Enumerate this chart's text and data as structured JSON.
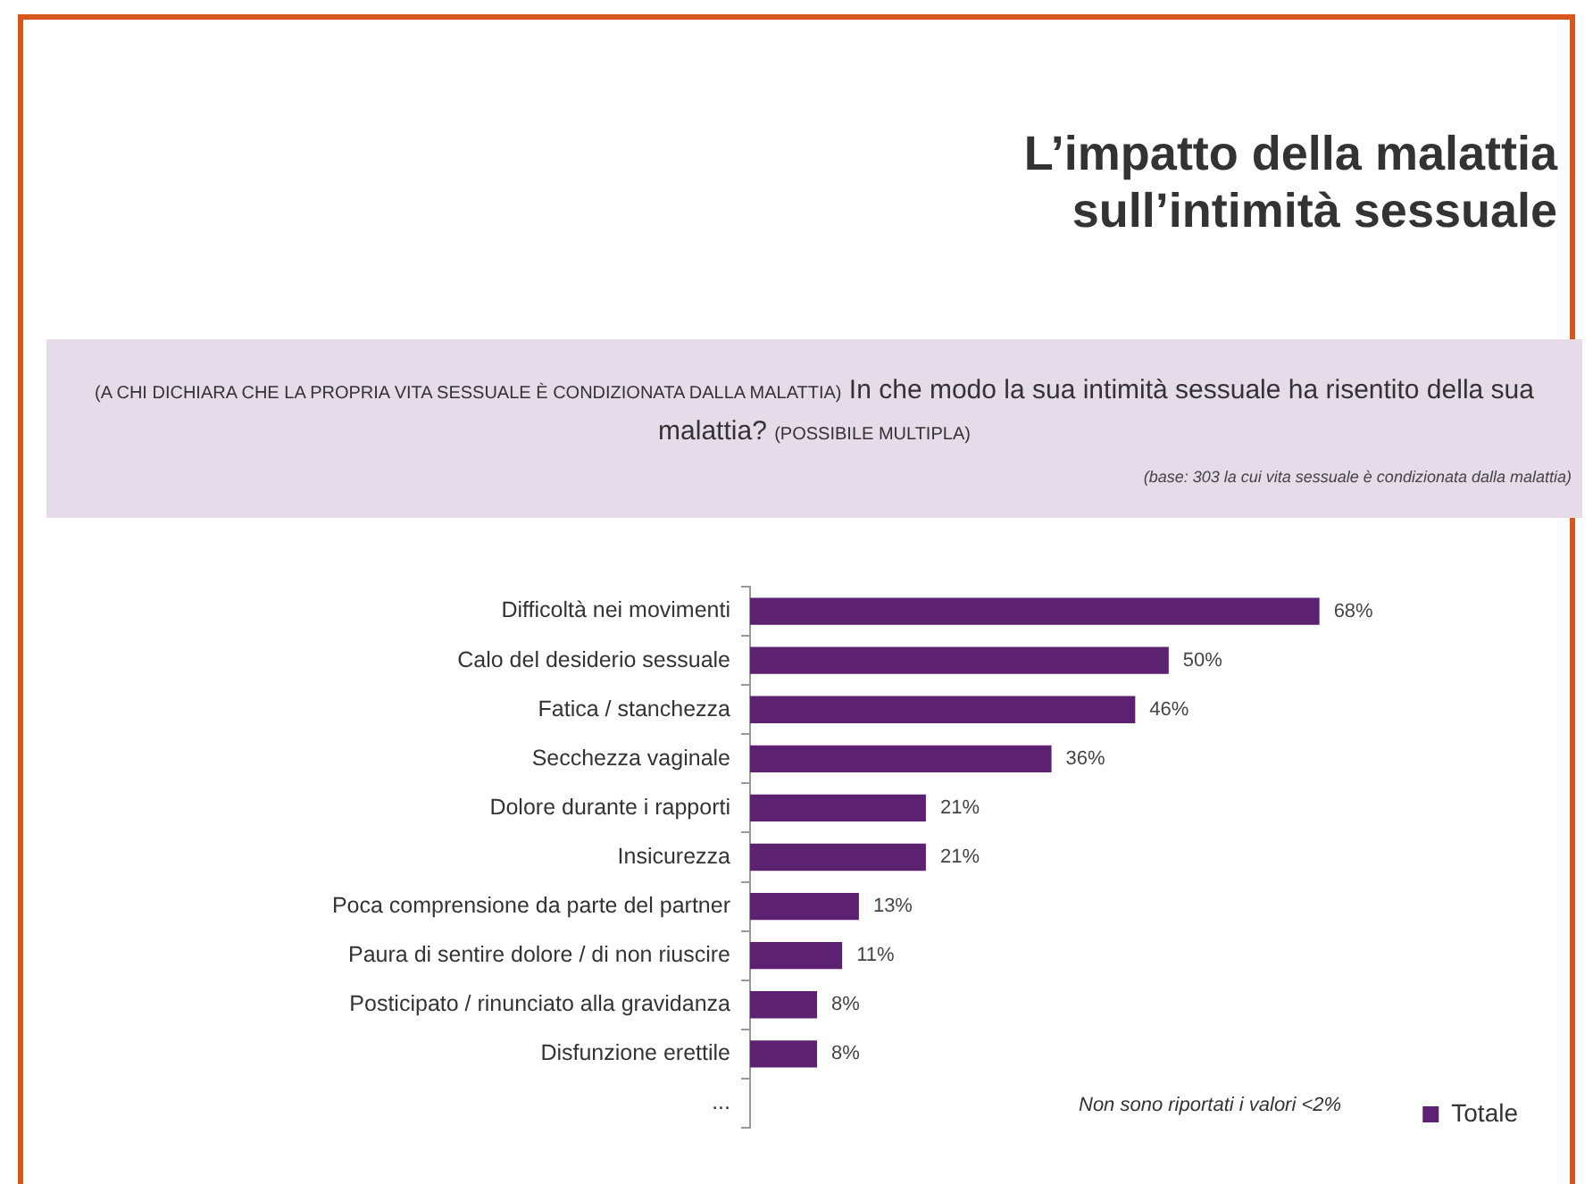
{
  "chart_data": {
    "type": "bar",
    "orientation": "horizontal",
    "title": "L’impatto della malattia sull’intimità sessuale",
    "subtitle": "(A CHI DICHIARA CHE LA PROPRIA VITA SESSUALE È CONDIZIONATA DALLA MALATTIA) In che modo la sua intimità sessuale ha risentito della sua malattia? (POSSIBILE MULTIPLA)",
    "annotations": [
      "(base: 303 la cui vita sessuale è condizionata dalla malattia)",
      "Non sono riportati i valori <2%"
    ],
    "categories": [
      "Difficoltà nei movimenti",
      "Calo del desiderio sessuale",
      "Fatica / stanchezza",
      "Secchezza vaginale",
      "Dolore durante i rapporti",
      "Insicurezza",
      "Poca comprensione da parte del partner",
      "Paura di sentire dolore / di non riuscire",
      "Posticipato / rinunciato alla gravidanza",
      "Disfunzione erettile",
      "..."
    ],
    "series": [
      {
        "name": "Totale",
        "color": "#5c2170",
        "values": [
          68,
          50,
          46,
          36,
          21,
          21,
          13,
          11,
          8,
          8,
          null
        ],
        "value_labels": [
          "68%",
          "50%",
          "46%",
          "36%",
          "21%",
          "21%",
          "13%",
          "11%",
          "8%",
          "8%",
          null
        ]
      }
    ],
    "legend": "right",
    "grid": false,
    "tick_labels": "y"
  }
}
